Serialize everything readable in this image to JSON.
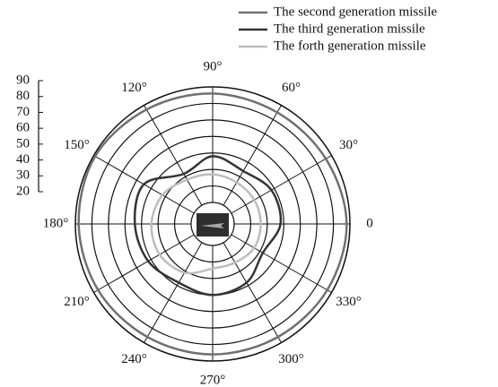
{
  "chart_data": {
    "type": "polar",
    "series": [
      {
        "name": "The second generation missile",
        "color": "#707070",
        "values": [
          88,
          86,
          85,
          86,
          87,
          89,
          88,
          87,
          86,
          86,
          86,
          87
        ]
      },
      {
        "name": "The third generation missile",
        "color": "#333333",
        "values": [
          48,
          48,
          44,
          48,
          42,
          55,
          54,
          52,
          48,
          50,
          48,
          42
        ]
      },
      {
        "name": "The forth generation missile",
        "color": "#bdbdbd",
        "values": [
          36,
          36,
          36,
          37,
          38,
          42,
          44,
          44,
          41,
          34,
          34,
          36
        ]
      }
    ],
    "theta": [
      0,
      30,
      60,
      90,
      120,
      150,
      180,
      210,
      240,
      270,
      300,
      330
    ],
    "thetaticks": [
      0,
      {
        "value": 30,
        "label": "30°"
      },
      {
        "value": 60,
        "label": "60°"
      },
      {
        "value": 90,
        "label": "90°"
      },
      {
        "value": 120,
        "label": "120°"
      },
      {
        "value": 150,
        "label": "150°"
      },
      {
        "value": 180,
        "label": "180°"
      },
      {
        "value": 210,
        "label": "210°"
      },
      {
        "value": 240,
        "label": "240°"
      },
      {
        "value": 270,
        "label": "270°"
      },
      {
        "value": 300,
        "label": "300°"
      },
      {
        "value": 330,
        "label": "330°"
      }
    ],
    "rlim": [
      20,
      90
    ],
    "rticks": [
      20,
      30,
      40,
      50,
      60,
      70,
      80,
      90
    ],
    "legend": "top-right"
  }
}
